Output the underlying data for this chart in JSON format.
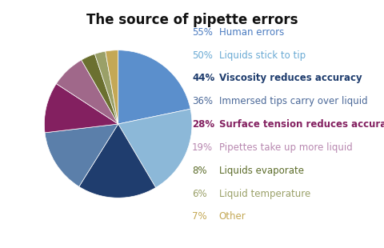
{
  "title": "The source of pipette errors",
  "slices": [
    55,
    50,
    44,
    36,
    28,
    19,
    8,
    6,
    7
  ],
  "labels": [
    "Human errors",
    "Liquids stick to tip",
    "Viscosity reduces accuracy",
    "Immersed tips carry over liquid",
    "Surface tension reduces accuracy",
    "Pipettes take up more liquid",
    "Liquids evaporate",
    "Liquid temperature",
    "Other"
  ],
  "percentages": [
    "55%",
    "50%",
    "44%",
    "36%",
    "28%",
    "19%",
    "8%",
    "6%",
    "7%"
  ],
  "pie_colors": [
    "#5B8FCC",
    "#8CB8D8",
    "#1F3D6E",
    "#5B7FAA",
    "#832060",
    "#A0688A",
    "#6B7030",
    "#9AA068",
    "#C4A855"
  ],
  "legend_pct_colors": [
    "#4A7BC0",
    "#6AAAD4",
    "#1F3D6E",
    "#4A6898",
    "#832060",
    "#B888B0",
    "#5B6B28",
    "#9AA068",
    "#C4A855"
  ],
  "legend_label_colors": [
    "#4A7BC0",
    "#6AAAD4",
    "#1F3D6E",
    "#4A6898",
    "#832060",
    "#B888B0",
    "#5B6B28",
    "#9AA068",
    "#C4A855"
  ],
  "bold_indices": [
    2,
    4
  ],
  "background_color": "#FFFFFF",
  "title_fontsize": 12,
  "legend_fontsize": 8.5
}
